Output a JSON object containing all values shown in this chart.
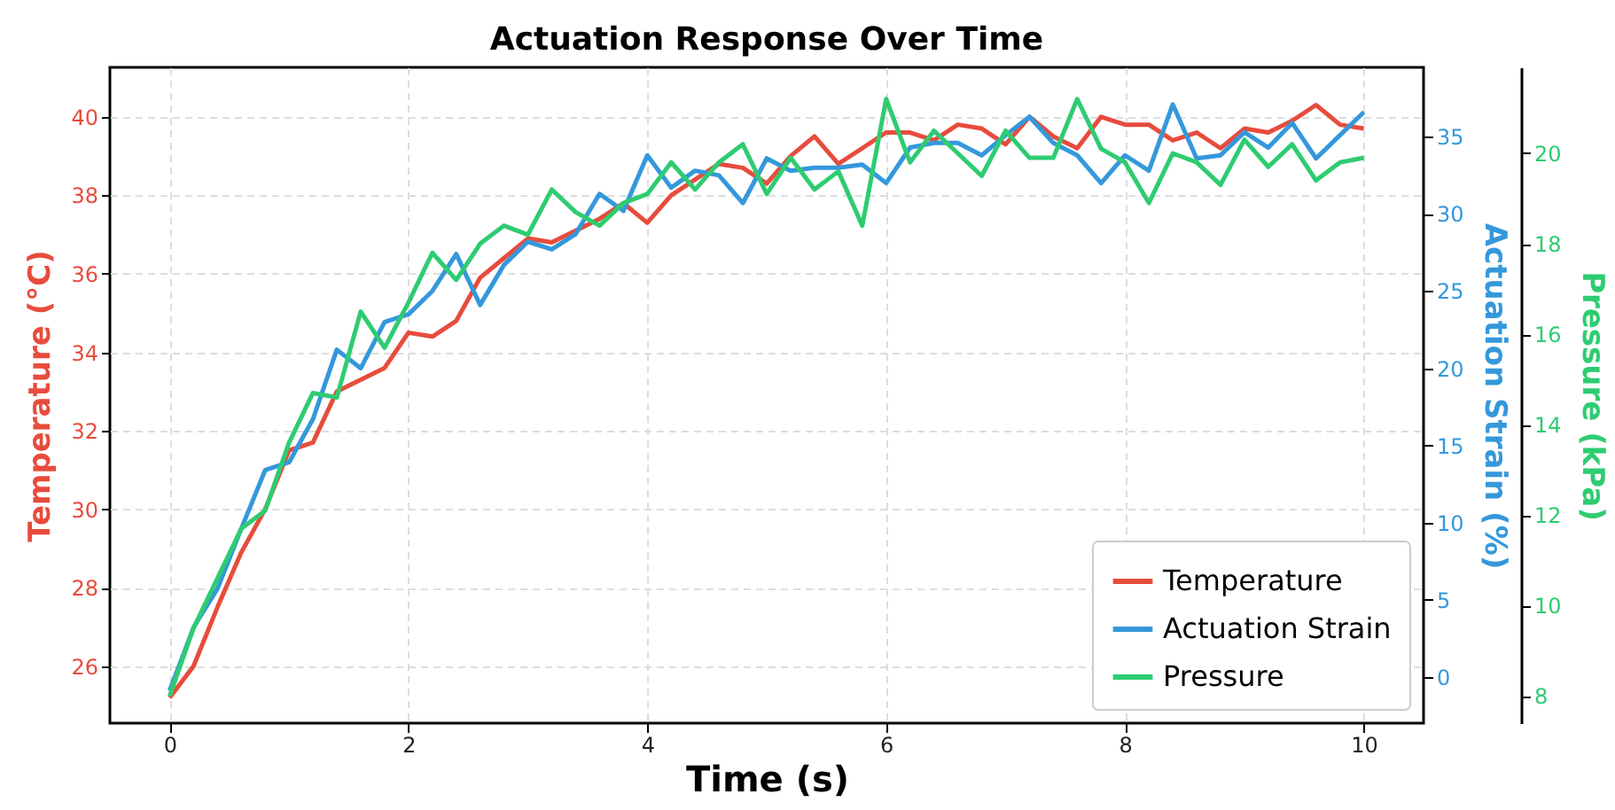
{
  "chart_data": {
    "type": "line",
    "title": "Actuation Response Over Time",
    "xlabel": "Time (s)",
    "ylabel": "Temperature (°C)",
    "y2label": "Actuation Strain (%)",
    "y3label": "Pressure (kPa)",
    "x": [
      0,
      0.2,
      0.4,
      0.6,
      0.8,
      1.0,
      1.2,
      1.4,
      1.6,
      1.8,
      2.0,
      2.2,
      2.4,
      2.6,
      2.8,
      3.0,
      3.2,
      3.4,
      3.6,
      3.8,
      4.0,
      4.2,
      4.4,
      4.6,
      4.8,
      5.0,
      5.2,
      5.4,
      5.6,
      5.8,
      6.0,
      6.2,
      6.4,
      6.6,
      6.8,
      7.0,
      7.2,
      7.4,
      7.6,
      7.8,
      8.0,
      8.2,
      8.4,
      8.6,
      8.8,
      9.0,
      9.2,
      9.4,
      9.6,
      9.8,
      10.0
    ],
    "series": [
      {
        "name": "Temperature",
        "color": "#e74c3c",
        "axis": "y",
        "values": [
          25.2,
          26.0,
          27.5,
          28.9,
          30.0,
          31.5,
          31.7,
          33.0,
          33.3,
          33.6,
          34.5,
          34.4,
          34.8,
          35.9,
          36.4,
          36.9,
          36.8,
          37.1,
          37.4,
          37.8,
          37.3,
          38.0,
          38.4,
          38.8,
          38.7,
          38.3,
          39.0,
          39.5,
          38.8,
          39.2,
          39.6,
          39.6,
          39.4,
          39.8,
          39.7,
          39.3,
          40.0,
          39.5,
          39.2,
          40.0,
          39.8,
          39.8,
          39.4,
          39.6,
          39.2,
          39.7,
          39.6,
          39.9,
          40.3,
          39.8,
          39.7
        ]
      },
      {
        "name": "Actuation Strain",
        "color": "#3498db",
        "axis": "y2",
        "values": [
          -0.9,
          3.2,
          5.7,
          9.6,
          13.4,
          13.9,
          16.7,
          21.2,
          20.0,
          23.0,
          23.5,
          25.0,
          27.4,
          24.1,
          26.7,
          28.2,
          27.7,
          28.7,
          31.3,
          30.2,
          33.8,
          31.7,
          32.8,
          32.5,
          30.7,
          33.6,
          32.8,
          33.0,
          33.0,
          33.2,
          32.0,
          34.3,
          34.6,
          34.6,
          33.8,
          35.1,
          36.3,
          34.6,
          33.8,
          32.0,
          33.8,
          32.8,
          37.1,
          33.6,
          33.8,
          35.3,
          34.3,
          35.9,
          33.6,
          35.1,
          36.6
        ]
      },
      {
        "name": "Pressure",
        "color": "#2ecc71",
        "axis": "y3",
        "values": [
          8.0,
          9.5,
          10.6,
          11.7,
          12.1,
          13.6,
          14.7,
          14.6,
          16.5,
          15.7,
          16.7,
          17.8,
          17.2,
          18.0,
          18.4,
          18.2,
          19.2,
          18.7,
          18.4,
          18.9,
          19.1,
          19.8,
          19.2,
          19.8,
          20.2,
          19.1,
          19.9,
          19.2,
          19.6,
          18.4,
          21.2,
          19.8,
          20.5,
          20.0,
          19.5,
          20.5,
          19.9,
          19.9,
          21.2,
          20.1,
          19.8,
          18.9,
          20.0,
          19.8,
          19.3,
          20.3,
          19.7,
          20.2,
          19.4,
          19.8,
          19.9
        ]
      }
    ],
    "xlim": [
      -0.5,
      10.5
    ],
    "xticks": [
      0,
      2,
      4,
      6,
      8,
      10
    ],
    "ylim": [
      24.55,
      41.26
    ],
    "yticks": [
      26,
      28,
      30,
      32,
      34,
      36,
      38,
      40
    ],
    "y2lim": [
      -3.0,
      39.5
    ],
    "y2ticks": [
      0,
      5,
      10,
      15,
      20,
      25,
      30,
      35
    ],
    "y3lim": [
      7.4,
      21.9
    ],
    "y3ticks": [
      8,
      10,
      12,
      14,
      16,
      18,
      20
    ],
    "grid": true,
    "legend": "bottom right"
  }
}
